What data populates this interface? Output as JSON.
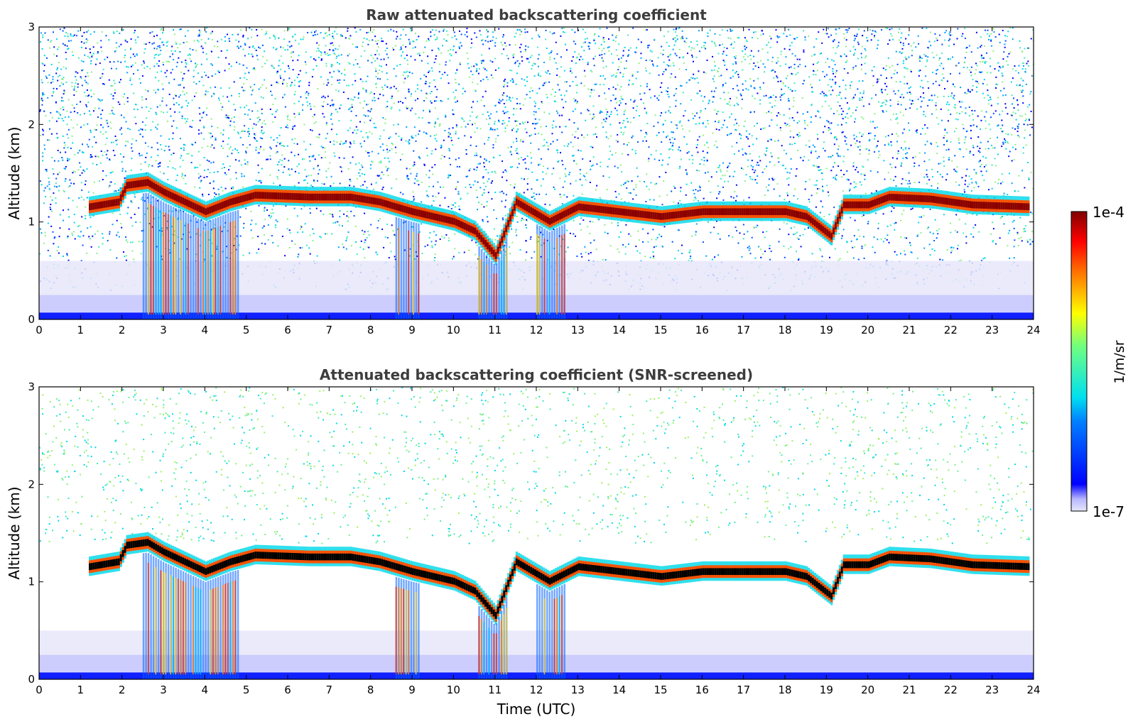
{
  "chart_data": [
    {
      "type": "heatmap",
      "title": "Raw attenuated backscattering coefficient",
      "xlabel": "",
      "ylabel": "Altitude (km)",
      "xlim": [
        0,
        24
      ],
      "ylim": [
        0,
        3
      ],
      "xticks": [
        0,
        1,
        2,
        3,
        4,
        5,
        6,
        7,
        8,
        9,
        10,
        11,
        12,
        13,
        14,
        15,
        16,
        17,
        18,
        19,
        20,
        21,
        22,
        23,
        24
      ],
      "yticks": [
        0,
        1,
        2,
        3
      ],
      "screened": false,
      "cloud_base_km": [
        [
          1.2,
          1.1
        ],
        [
          1.9,
          1.15
        ],
        [
          2.1,
          1.32
        ],
        [
          2.6,
          1.35
        ],
        [
          3.0,
          1.25
        ],
        [
          3.5,
          1.15
        ],
        [
          4.0,
          1.05
        ],
        [
          4.6,
          1.15
        ],
        [
          5.2,
          1.22
        ],
        [
          6.5,
          1.2
        ],
        [
          7.5,
          1.2
        ],
        [
          8.2,
          1.15
        ],
        [
          9.0,
          1.05
        ],
        [
          10.0,
          0.95
        ],
        [
          10.5,
          0.85
        ],
        [
          11.0,
          0.6
        ],
        [
          11.5,
          1.15
        ],
        [
          12.3,
          0.95
        ],
        [
          13.0,
          1.1
        ],
        [
          14.0,
          1.05
        ],
        [
          15.0,
          1.0
        ],
        [
          16.0,
          1.05
        ],
        [
          17.0,
          1.05
        ],
        [
          18.0,
          1.05
        ],
        [
          18.5,
          1.0
        ],
        [
          19.1,
          0.8
        ],
        [
          19.4,
          1.12
        ],
        [
          20.0,
          1.12
        ],
        [
          20.5,
          1.2
        ],
        [
          21.5,
          1.18
        ],
        [
          22.5,
          1.12
        ],
        [
          23.9,
          1.1
        ]
      ],
      "precipitation_shafts_utc": [
        [
          2.5,
          4.8
        ],
        [
          8.6,
          9.2
        ],
        [
          10.6,
          11.3
        ],
        [
          12.0,
          12.7
        ]
      ]
    },
    {
      "type": "heatmap",
      "title": "Attenuated backscattering coefficient (SNR-screened)",
      "xlabel": "Time (UTC)",
      "ylabel": "Altitude (km)",
      "xlim": [
        0,
        24
      ],
      "ylim": [
        0,
        3
      ],
      "xticks": [
        0,
        1,
        2,
        3,
        4,
        5,
        6,
        7,
        8,
        9,
        10,
        11,
        12,
        13,
        14,
        15,
        16,
        17,
        18,
        19,
        20,
        21,
        22,
        23,
        24
      ],
      "yticks": [
        0,
        1,
        2,
        3
      ],
      "screened": true
    }
  ],
  "colorbar": {
    "max_label": "1e-4",
    "min_label": "1e-7",
    "unit": "1/m/sr",
    "range": [
      1e-07,
      0.0001
    ],
    "colormap": "jet",
    "low_color": "#e6e6fa"
  }
}
